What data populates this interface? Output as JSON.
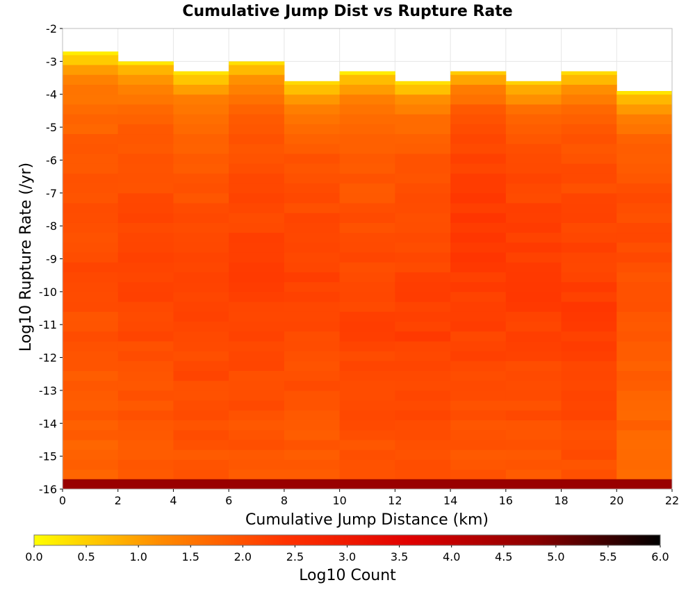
{
  "chart_data": {
    "type": "heatmap",
    "title": "Cumulative Jump Dist vs Rupture Rate",
    "xlabel": "Cumulative Jump Distance (km)",
    "ylabel": "Log10 Rupture Rate (/yr)",
    "xlim": [
      0,
      22
    ],
    "ylim": [
      -16,
      -2
    ],
    "x_ticks": [
      "0",
      "2",
      "4",
      "6",
      "8",
      "10",
      "12",
      "14",
      "16",
      "18",
      "20",
      "22"
    ],
    "y_ticks": [
      "-2",
      "-3",
      "-4",
      "-5",
      "-6",
      "-7",
      "-8",
      "-9",
      "-10",
      "-11",
      "-12",
      "-13",
      "-14",
      "-15",
      "-16"
    ],
    "x_bin_width": 2,
    "y_bin_width": 0.3,
    "x_bin_starts": [
      0,
      2,
      4,
      6,
      8,
      10,
      12,
      14,
      16,
      18,
      20
    ],
    "column_top_rate": [
      -2.7,
      -3.0,
      -3.3,
      -3.0,
      -3.6,
      -3.3,
      -3.6,
      -3.3,
      -3.6,
      -3.3,
      -3.9
    ],
    "column_peak_count": [
      2.1,
      2.2,
      2.2,
      2.25,
      2.2,
      2.2,
      2.25,
      2.35,
      2.3,
      2.3,
      2.1
    ],
    "column_peak_rate": [
      -9.5,
      -9.5,
      -10.5,
      -9.5,
      -9.5,
      -11.0,
      -11.0,
      -8.5,
      -9.5,
      -10.5,
      -8.0
    ],
    "bottom_row_count": 4.6,
    "grid": true,
    "colorbar": {
      "label": "Log10 Count",
      "range": [
        0,
        6
      ],
      "ticks": [
        "0.0",
        "0.5",
        "1.0",
        "1.5",
        "2.0",
        "2.5",
        "3.0",
        "3.5",
        "4.0",
        "4.5",
        "5.0",
        "5.5",
        "6.0"
      ],
      "colors": [
        "#ffff00",
        "#ff8c00",
        "#ff3300",
        "#e00000",
        "#8b0000",
        "#000000"
      ]
    }
  }
}
